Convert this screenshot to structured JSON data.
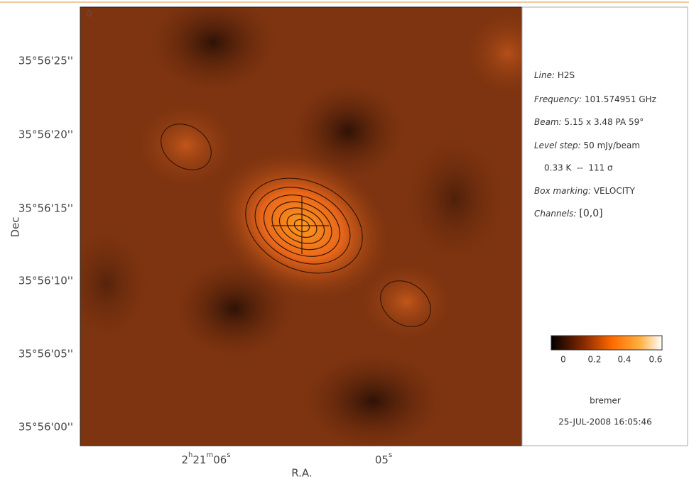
{
  "map": {
    "y_axis_label": "Dec",
    "x_axis_label": "R.A.",
    "y_ticks": [
      "35°56'25''",
      "35°56'20''",
      "35°56'15''",
      "35°56'10''",
      "35°56'05''",
      "35°56'00''"
    ],
    "x_ticks": [
      [
        "2",
        "h",
        "21",
        "m",
        "06",
        "s"
      ],
      [
        "05",
        "s"
      ]
    ],
    "corner_label": "0"
  },
  "info": {
    "line": {
      "label": "Line:",
      "value": "H2S"
    },
    "frequency": {
      "label": "Frequency:",
      "value": "101.574951 GHz"
    },
    "beam": {
      "label": "Beam:",
      "value": "5.15 x 3.48 PA 59°"
    },
    "level_step": {
      "label": "Level step:",
      "value": "50 mJy/beam"
    },
    "level_note": "0.33 K  --  111 σ",
    "box_marking": {
      "label": "Box marking:",
      "value": "VELOCITY"
    },
    "channels": {
      "label": "Channels:",
      "value": "[0,0]"
    },
    "colorbar_ticks": [
      "0",
      "0.2",
      "0.4",
      "0.6"
    ],
    "user": "bremer",
    "timestamp": "25-JUL-2008 16:05:46"
  }
}
